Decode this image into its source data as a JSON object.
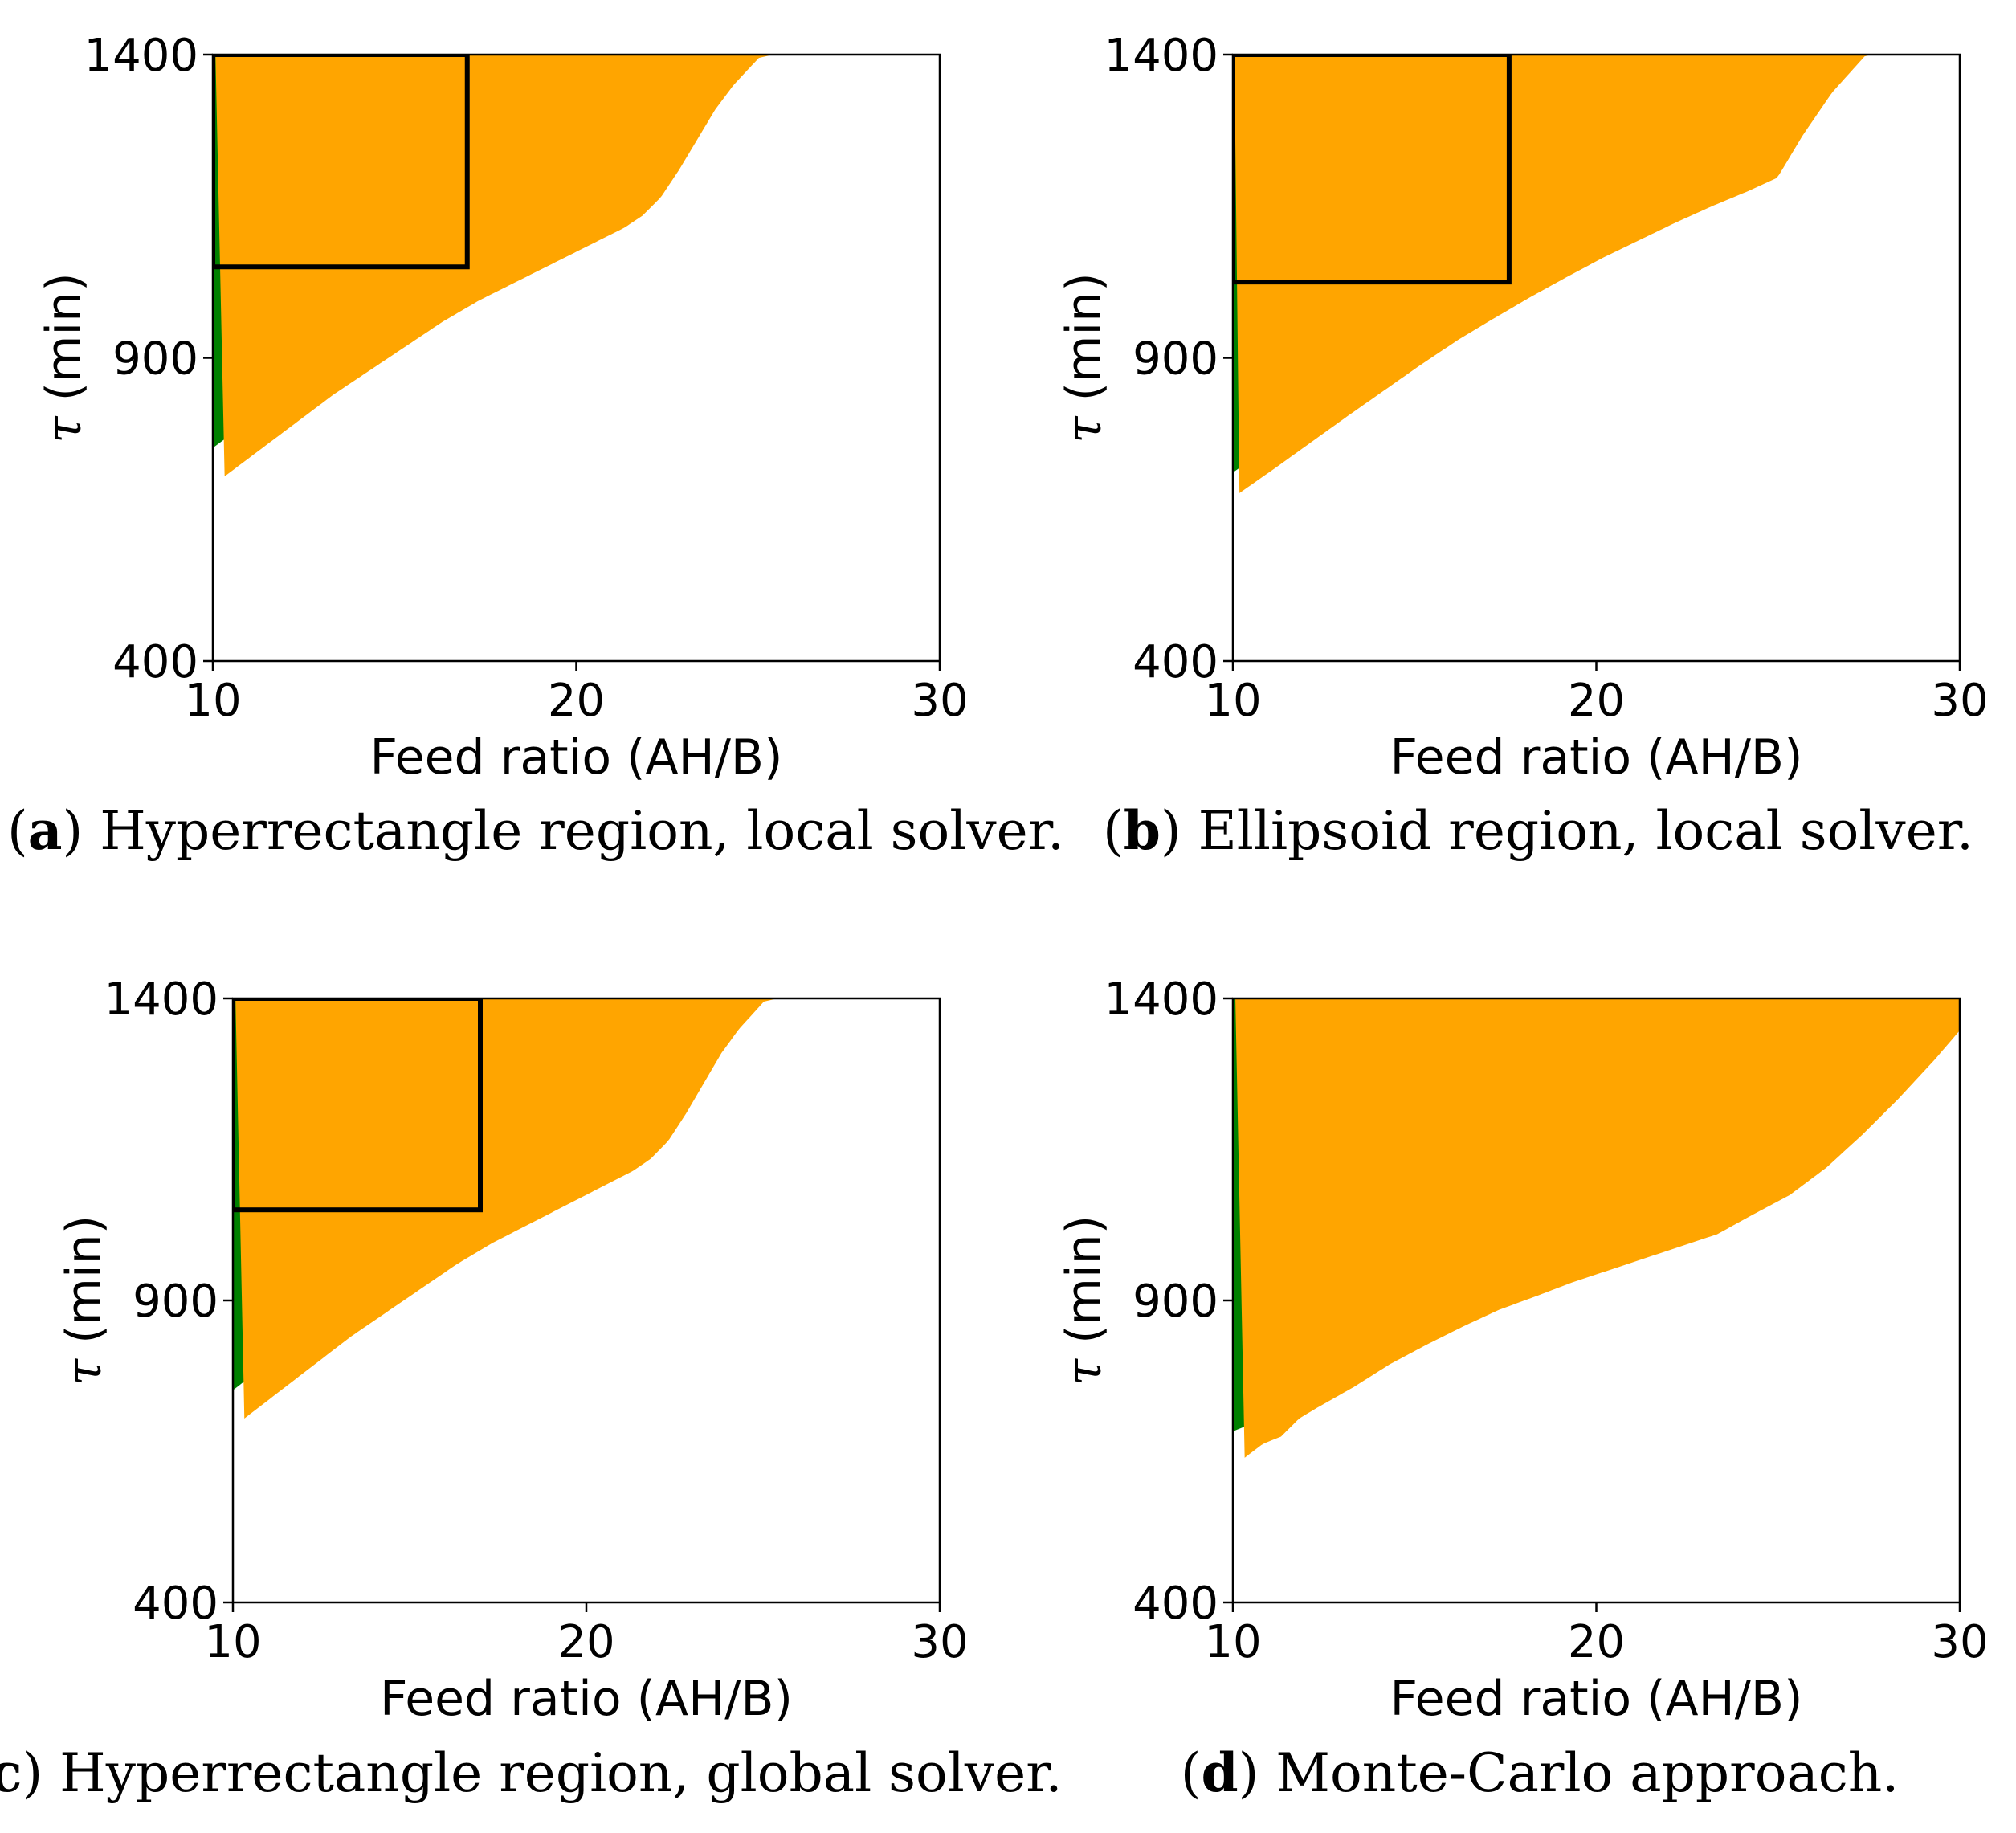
{
  "colors": {
    "feasible": "#FFA500",
    "band_upper": "#008000",
    "band_lower": "#FF0000",
    "background": "#FFFFFF",
    "rectangle": "#000000"
  },
  "chart_data": [
    {
      "type": "area",
      "panel": "a",
      "caption_letter": "a",
      "caption_text": "Hyperrectangle region, local solver.",
      "xlabel": "Feed ratio (AH/B)",
      "ylabel_symbol": "τ",
      "ylabel_unit": "(min)",
      "xlim": [
        10,
        30
      ],
      "ylim": [
        400,
        1400
      ],
      "xticks": [
        "10",
        "20",
        "30"
      ],
      "yticks": [
        "400",
        "900",
        "1400"
      ],
      "grid": false,
      "boundary": {
        "x": [
          10,
          11,
          12,
          13,
          14,
          15,
          16,
          17,
          18,
          19,
          20,
          21,
          21.5,
          22,
          22.5,
          23,
          23.5,
          24,
          24.7
        ],
        "y": [
          710,
          755,
          800,
          845,
          885,
          925,
          965,
          1000,
          1030,
          1060,
          1090,
          1120,
          1140,
          1170,
          1215,
          1265,
          1315,
          1355,
          1400
        ]
      },
      "green_band_width": 18,
      "red_band_width": 28,
      "rectangle": {
        "x": [
          10,
          17
        ],
        "y": [
          1050,
          1400
        ]
      }
    },
    {
      "type": "area",
      "panel": "b",
      "caption_letter": "b",
      "caption_text": "Ellipsoid region, local solver.",
      "xlabel": "Feed ratio (AH/B)",
      "ylabel_symbol": "τ",
      "ylabel_unit": "(min)",
      "xlim": [
        10,
        30
      ],
      "ylim": [
        400,
        1400
      ],
      "xticks": [
        "10",
        "20",
        "30"
      ],
      "yticks": [
        "400",
        "900",
        "1400"
      ],
      "grid": false,
      "boundary": {
        "x": [
          10,
          11,
          12,
          13,
          14,
          15,
          16,
          17,
          18,
          19,
          20,
          21,
          22,
          23,
          24,
          24.8,
          25.5,
          26.3,
          27.2
        ],
        "y": [
          680,
          722,
          765,
          808,
          850,
          892,
          932,
          968,
          1003,
          1036,
          1068,
          1097,
          1126,
          1153,
          1178,
          1200,
          1270,
          1340,
          1400
        ]
      },
      "green_band_width": 10,
      "red_band_width": 22,
      "rectangle": {
        "x": [
          10,
          17.6
        ],
        "y": [
          1025,
          1400
        ]
      }
    },
    {
      "type": "area",
      "panel": "c",
      "caption_letter": "c",
      "caption_text": "Hyperrectangle region, global solver.",
      "xlabel": "Feed ratio (AH/B)",
      "ylabel_symbol": "τ",
      "ylabel_unit": "(min)",
      "xlim": [
        10,
        30
      ],
      "ylim": [
        400,
        1400
      ],
      "xticks": [
        "10",
        "20",
        "30"
      ],
      "yticks": [
        "400",
        "900",
        "1400"
      ],
      "grid": false,
      "boundary": {
        "x": [
          10,
          11,
          12,
          13,
          14,
          15,
          16,
          17,
          18,
          19,
          20,
          21,
          21.5,
          22,
          22.5,
          23,
          23.5,
          24,
          24.7
        ],
        "y": [
          710,
          755,
          800,
          845,
          885,
          925,
          965,
          1000,
          1030,
          1060,
          1090,
          1120,
          1140,
          1170,
          1215,
          1265,
          1315,
          1355,
          1400
        ]
      },
      "green_band_width": 18,
      "red_band_width": 28,
      "rectangle": {
        "x": [
          10,
          17
        ],
        "y": [
          1050,
          1400
        ]
      }
    },
    {
      "type": "area",
      "panel": "d",
      "caption_letter": "d",
      "caption_text": "Monte-Carlo approach.",
      "xlabel": "Feed ratio (AH/B)",
      "ylabel_symbol": "τ",
      "ylabel_unit": "(min)",
      "xlim": [
        10,
        30
      ],
      "ylim": [
        400,
        1400
      ],
      "xticks": [
        "10",
        "20",
        "30"
      ],
      "yticks": [
        "400",
        "900",
        "1400"
      ],
      "grid": false,
      "boundary": {
        "x": [
          10,
          10.5,
          11,
          11.5,
          12,
          13,
          14,
          15,
          16,
          17,
          18,
          19,
          20,
          21,
          22,
          23,
          24,
          25,
          26,
          27,
          28,
          29,
          30
        ],
        "y": [
          645,
          668,
          680,
          710,
          728,
          762,
          800,
          832,
          862,
          890,
          912,
          935,
          955,
          975,
          995,
          1015,
          1048,
          1080,
          1125,
          1180,
          1240,
          1305,
          1375
        ]
      },
      "green_band_width": 18,
      "red_band_width": 28,
      "rectangle": null
    }
  ]
}
